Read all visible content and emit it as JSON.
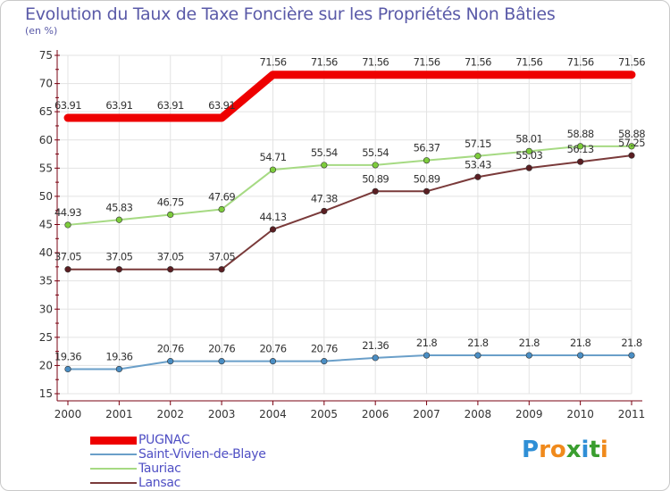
{
  "title": "Evolution du Taux de Taxe Foncière sur les Propriétés Non Bâties",
  "subtitle": "(en %)",
  "logo": {
    "letters": [
      "P",
      "r",
      "o",
      "x",
      "i",
      "t",
      "i"
    ],
    "colors": [
      "#2f8fd6",
      "#f08a1c",
      "#f08a1c",
      "#3a9e2f",
      "#2f8fd6",
      "#3a9e2f",
      "#f08a1c"
    ]
  },
  "chart_data": {
    "type": "line",
    "x": [
      "2000",
      "2001",
      "2002",
      "2003",
      "2004",
      "2005",
      "2006",
      "2007",
      "2008",
      "2009",
      "2010",
      "2011"
    ],
    "ylim": [
      15,
      75
    ],
    "yticks": [
      "15",
      "20",
      "25",
      "30",
      "35",
      "40",
      "45",
      "50",
      "55",
      "60",
      "65",
      "70",
      "75"
    ],
    "grid": true,
    "legend": "bottom-left",
    "series": [
      {
        "name": "PUGNAC",
        "color": "#ee0000",
        "width": 9,
        "markers": false,
        "values": [
          63.91,
          63.91,
          63.91,
          63.91,
          71.56,
          71.56,
          71.56,
          71.56,
          71.56,
          71.56,
          71.56,
          71.56
        ],
        "labels": [
          "63.91",
          "63.91",
          "63.91",
          "63.91",
          "71.56",
          "71.56",
          "71.56",
          "71.56",
          "71.56",
          "71.56",
          "71.56",
          "71.56"
        ]
      },
      {
        "name": "Saint-Vivien-de-Blaye",
        "color": "#6a9fc9",
        "marker": "#4a8ec4",
        "width": 2,
        "markers": true,
        "values": [
          19.36,
          19.36,
          20.76,
          20.76,
          20.76,
          20.76,
          21.36,
          21.8,
          21.8,
          21.8,
          21.8,
          21.8
        ],
        "labels": [
          "19.36",
          "19.36",
          "20.76",
          "20.76",
          "20.76",
          "20.76",
          "21.36",
          "21.8",
          "21.8",
          "21.8",
          "21.8",
          "21.8"
        ]
      },
      {
        "name": "Tauriac",
        "color": "#a6da83",
        "marker": "#7dcc3c",
        "width": 2,
        "markers": true,
        "values": [
          44.93,
          45.83,
          46.75,
          47.69,
          54.71,
          55.54,
          55.54,
          56.37,
          57.15,
          58.01,
          58.88,
          58.88
        ],
        "labels": [
          "44.93",
          "45.83",
          "46.75",
          "47.69",
          "54.71",
          "55.54",
          "55.54",
          "56.37",
          "57.15",
          "58.01",
          "58.88",
          "58.88"
        ]
      },
      {
        "name": "Lansac",
        "color": "#7a3a3a",
        "marker": "#5a1e22",
        "width": 2,
        "markers": true,
        "values": [
          37.05,
          37.05,
          37.05,
          37.05,
          44.13,
          47.38,
          50.89,
          50.89,
          53.43,
          55.03,
          56.13,
          57.25
        ],
        "labels": [
          "37.05",
          "37.05",
          "37.05",
          "37.05",
          "44.13",
          "47.38",
          "50.89",
          "50.89",
          "53.43",
          "55.03",
          "56.13",
          "57.25"
        ]
      }
    ]
  }
}
